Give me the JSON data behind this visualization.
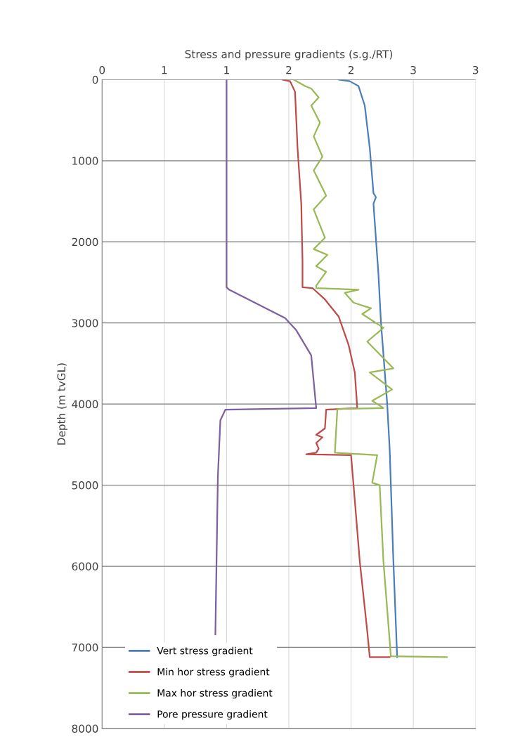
{
  "chart_data": {
    "type": "line",
    "xlabel": "Stress and pressure gradients (s.g./RT)",
    "ylabel": "Depth (m tvGL)",
    "xlim": [
      0,
      3
    ],
    "xticks": [
      0,
      {
        "value": 0.5,
        "label": "1"
      },
      1,
      {
        "value": 1.5,
        "label": "2"
      },
      2,
      {
        "value": 2.5,
        "label": "3"
      },
      3
    ],
    "ylim": [
      8000,
      0
    ],
    "yticks": [
      0,
      1000,
      2000,
      3000,
      4000,
      5000,
      6000,
      7000,
      8000
    ],
    "grid": true,
    "legend": "bottom left",
    "marker": "none",
    "line_style": "solid",
    "series": [
      {
        "name": "Vert stress gradient",
        "color": "#4a7ebb",
        "x": [
          1.9,
          1.99,
          2.06,
          2.11,
          2.15,
          2.18,
          2.2,
          2.18,
          2.22,
          2.24,
          2.29,
          2.31,
          2.34,
          2.37,
          2.37
        ],
        "values": [
          0,
          20,
          80,
          320,
          840,
          1400,
          1450,
          1530,
          2400,
          2990,
          3990,
          4550,
          5940,
          7110,
          7120
        ]
      },
      {
        "name": "Min hor stress gradient",
        "color": "#be4b48",
        "x": [
          1.45,
          1.51,
          1.55,
          1.57,
          1.6,
          1.61,
          1.61,
          1.69,
          1.79,
          1.9,
          1.98,
          2.03,
          2.05,
          1.8,
          1.79,
          1.72,
          1.77,
          1.72,
          1.74,
          1.72,
          1.64,
          2.0,
          2.02,
          2.07,
          2.13,
          2.15,
          2.31
        ],
        "values": [
          0,
          20,
          150,
          840,
          1530,
          2230,
          2560,
          2570,
          2710,
          2920,
          3270,
          3610,
          4050,
          4070,
          4300,
          4380,
          4410,
          4480,
          4550,
          4600,
          4620,
          4630,
          5000,
          5940,
          6800,
          7120,
          7120
        ]
      },
      {
        "name": "Max hor stress gradient",
        "color": "#98b954",
        "x": [
          1.54,
          1.63,
          1.68,
          1.74,
          1.68,
          1.75,
          1.7,
          1.77,
          1.7,
          1.8,
          1.7,
          1.79,
          1.7,
          1.81,
          1.72,
          1.8,
          1.72,
          1.72,
          2.06,
          1.95,
          2.02,
          2.16,
          2.09,
          2.26,
          2.13,
          2.34,
          2.15,
          2.33,
          2.17,
          2.26,
          1.89,
          1.87,
          2.21,
          2.17,
          2.23,
          2.26,
          2.32,
          2.77
        ],
        "values": [
          0,
          80,
          110,
          220,
          320,
          530,
          700,
          950,
          1120,
          1430,
          1600,
          1950,
          2090,
          2160,
          2300,
          2370,
          2540,
          2570,
          2590,
          2630,
          2750,
          2820,
          2890,
          3060,
          3230,
          3560,
          3610,
          3820,
          3960,
          4050,
          4060,
          4600,
          4630,
          4970,
          5000,
          5940,
          7110,
          7120
        ]
      },
      {
        "name": "Pore pressure gradient",
        "color": "#7d60a0",
        "x": [
          1.0,
          1.0,
          1.02,
          1.47,
          1.56,
          1.68,
          1.72,
          0.99,
          0.95,
          0.93,
          0.91
        ],
        "values": [
          0,
          2560,
          2590,
          2940,
          3090,
          3400,
          4050,
          4070,
          4200,
          4900,
          6840
        ]
      }
    ]
  }
}
